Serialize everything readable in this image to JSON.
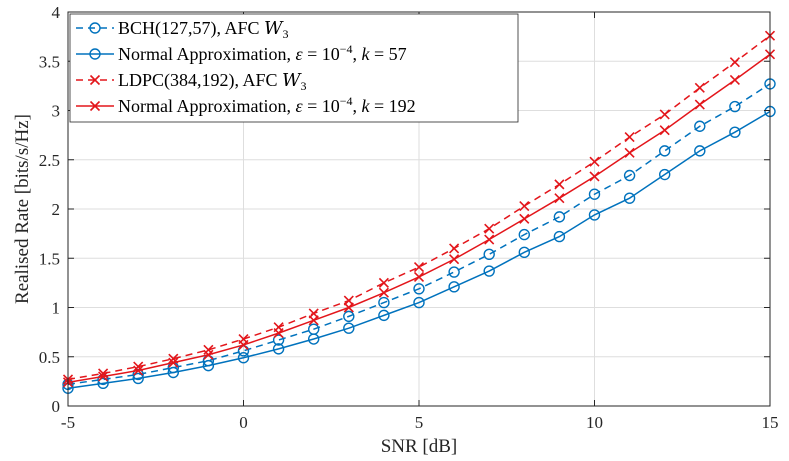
{
  "chart_data": {
    "type": "line",
    "title": "",
    "xlabel": "SNR [dB]",
    "ylabel": "Realised Rate [bits/s/Hz]",
    "xlim": [
      -5,
      15
    ],
    "ylim": [
      0,
      4
    ],
    "grid": true,
    "legend_position": "top-left",
    "x_ticks": [
      -5,
      0,
      5,
      10,
      15
    ],
    "x_tick_labels": [
      "-5",
      "0",
      "5",
      "10",
      "15"
    ],
    "y_ticks": [
      0,
      0.5,
      1,
      1.5,
      2,
      2.5,
      3,
      3.5,
      4
    ],
    "y_tick_labels": [
      "0",
      "0.5",
      "1",
      "1.5",
      "2",
      "2.5",
      "3",
      "3.5",
      "4"
    ],
    "x": [
      -5,
      -4,
      -3,
      -2,
      -1,
      0,
      1,
      2,
      3,
      4,
      5,
      6,
      7,
      8,
      9,
      10,
      11,
      12,
      13,
      14,
      15
    ],
    "series": [
      {
        "name": "BCH(127,57), AFC W3",
        "legend": {
          "pre": "BCH(127,57), AFC ",
          "sym": "W",
          "sub": "3"
        },
        "color": "#0072BD",
        "line": "dashed",
        "marker": "circle",
        "values": [
          0.22,
          0.27,
          0.32,
          0.39,
          0.46,
          0.56,
          0.67,
          0.78,
          0.91,
          1.05,
          1.19,
          1.36,
          1.54,
          1.74,
          1.92,
          2.15,
          2.34,
          2.59,
          2.84,
          3.04,
          3.27
        ]
      },
      {
        "name": "Normal Approximation, ε = 10^-4, k = 57",
        "legend": {
          "pre": "Normal Approximation, ",
          "eps": "ε",
          "eq": " = 10",
          "exp": "−4",
          "mid": ", ",
          "k": "k",
          "post": " = 57"
        },
        "color": "#0072BD",
        "line": "solid",
        "marker": "circle",
        "values": [
          0.18,
          0.23,
          0.28,
          0.34,
          0.41,
          0.49,
          0.58,
          0.68,
          0.79,
          0.92,
          1.05,
          1.21,
          1.37,
          1.56,
          1.72,
          1.94,
          2.11,
          2.35,
          2.59,
          2.78,
          2.99
        ]
      },
      {
        "name": "LDPC(384,192), AFC W3",
        "legend": {
          "pre": "LDPC(384,192), AFC ",
          "sym": "W",
          "sub": "3"
        },
        "color": "#E3161B",
        "line": "dashed",
        "marker": "x",
        "values": [
          0.27,
          0.33,
          0.4,
          0.48,
          0.57,
          0.68,
          0.8,
          0.94,
          1.07,
          1.25,
          1.41,
          1.6,
          1.8,
          2.03,
          2.25,
          2.48,
          2.73,
          2.96,
          3.23,
          3.49,
          3.76
        ]
      },
      {
        "name": "Normal Approximation, ε = 10^-4, k = 192",
        "legend": {
          "pre": "Normal Approximation, ",
          "eps": "ε",
          "eq": " = 10",
          "exp": "−4",
          "mid": ", ",
          "k": "k",
          "post": " = 192"
        },
        "color": "#E3161B",
        "line": "solid",
        "marker": "x",
        "values": [
          0.24,
          0.3,
          0.36,
          0.44,
          0.52,
          0.62,
          0.74,
          0.87,
          1.0,
          1.15,
          1.31,
          1.49,
          1.69,
          1.9,
          2.11,
          2.33,
          2.57,
          2.8,
          3.06,
          3.31,
          3.57
        ]
      }
    ]
  }
}
